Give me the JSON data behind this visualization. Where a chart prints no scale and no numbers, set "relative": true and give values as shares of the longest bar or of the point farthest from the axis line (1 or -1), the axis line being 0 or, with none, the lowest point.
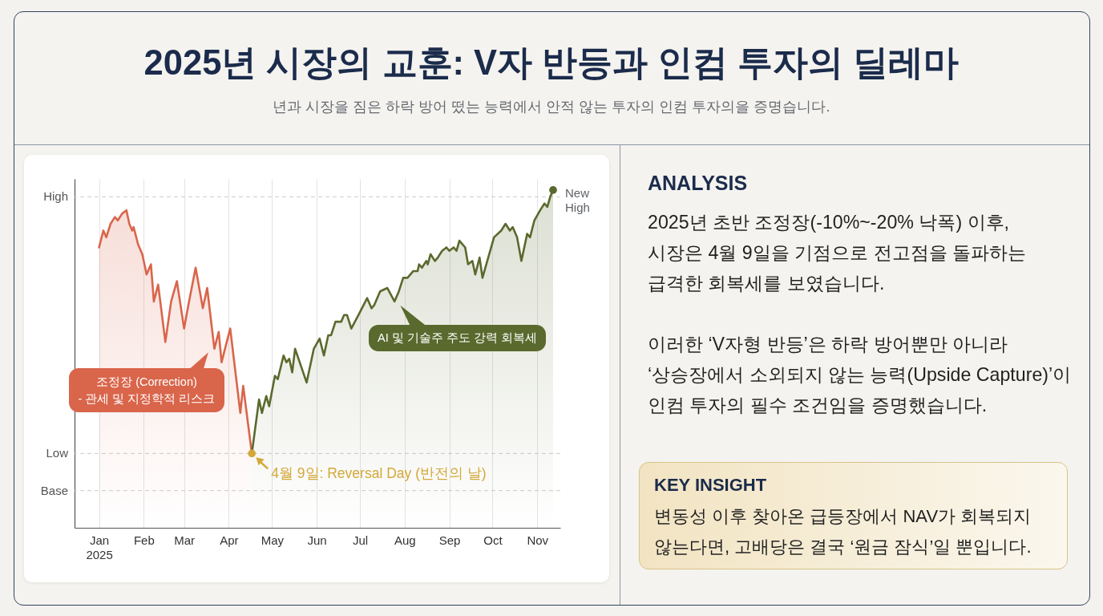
{
  "chart_data": [
    {
      "type": "area",
      "title": "2025년 시장의 교훈: V자 반등과 인컴 투자의 딜레마",
      "subtitle": "년과 시장을 짐은 하락 방어 떴는 능력에서 안적 않는 투자의 인컴 투자의을 증명습니다.",
      "relative": true,
      "grid": "x",
      "xlim": [
        "2024-12-15",
        "2025-11-17"
      ],
      "xticks": [
        {
          "value": "2025-01",
          "label": "Jan\n2025"
        },
        {
          "value": "2025-02",
          "label": "Feb"
        },
        {
          "value": "2025-03",
          "label": "Mar"
        },
        {
          "value": "2025-04",
          "label": "Apr"
        },
        {
          "value": "2025-05",
          "label": "May"
        },
        {
          "value": "2025-06",
          "label": "Jun"
        },
        {
          "value": "2025-07",
          "label": "Jul"
        },
        {
          "value": "2025-08",
          "label": "Aug"
        },
        {
          "value": "2025-09",
          "label": "Sep"
        },
        {
          "value": "2025-10",
          "label": "Oct"
        },
        {
          "value": "2025-11",
          "label": "Nov"
        }
      ],
      "series": [
        {
          "type": "area",
          "color": "#d9654b",
          "x": [
            "2025-01-01",
            "2025-01-04",
            "2025-01-06",
            "2025-01-09",
            "2025-01-12",
            "2025-01-14",
            "2025-01-17",
            "2025-01-20",
            "2025-01-22",
            "2025-01-24",
            "2025-01-25",
            "2025-01-28",
            "2025-01-31",
            "2025-02-03",
            "2025-02-06",
            "2025-02-08",
            "2025-02-11",
            "2025-02-16",
            "2025-02-20",
            "2025-02-24",
            "2025-03-01",
            "2025-03-04",
            "2025-03-09",
            "2025-03-14",
            "2025-03-17",
            "2025-03-22",
            "2025-03-25",
            "2025-03-27",
            "2025-04-02",
            "2025-04-09",
            "2025-04-11",
            "2025-04-17"
          ],
          "values": [
            0.83,
            0.88,
            0.86,
            0.9,
            0.92,
            0.91,
            0.93,
            0.94,
            0.9,
            0.88,
            0.89,
            0.84,
            0.81,
            0.75,
            0.78,
            0.67,
            0.72,
            0.55,
            0.67,
            0.73,
            0.59,
            0.66,
            0.77,
            0.65,
            0.71,
            0.53,
            0.58,
            0.49,
            0.59,
            0.34,
            0.42,
            0.22
          ]
        },
        {
          "type": "area",
          "color": "#5a692d",
          "x": [
            "2025-04-17",
            "2025-04-22",
            "2025-04-24",
            "2025-04-27",
            "2025-04-29",
            "2025-05-03",
            "2025-05-05",
            "2025-05-09",
            "2025-05-11",
            "2025-05-13",
            "2025-05-15",
            "2025-05-17",
            "2025-05-25",
            "2025-05-30",
            "2025-06-03",
            "2025-06-06",
            "2025-06-09",
            "2025-06-11",
            "2025-06-14",
            "2025-06-18",
            "2025-06-20",
            "2025-06-22",
            "2025-06-25",
            "2025-06-30",
            "2025-07-06",
            "2025-07-09",
            "2025-07-11",
            "2025-07-15",
            "2025-07-20",
            "2025-07-25",
            "2025-07-28",
            "2025-07-31",
            "2025-08-03",
            "2025-08-07",
            "2025-08-10",
            "2025-08-11",
            "2025-08-13",
            "2025-08-16",
            "2025-08-17",
            "2025-08-19",
            "2025-08-22",
            "2025-08-24",
            "2025-08-27",
            "2025-08-30",
            "2025-09-01",
            "2025-09-04",
            "2025-09-06",
            "2025-09-08",
            "2025-09-12",
            "2025-09-14",
            "2025-09-17",
            "2025-09-19",
            "2025-09-22",
            "2025-09-24",
            "2025-09-28",
            "2025-10-02",
            "2025-10-07",
            "2025-10-10",
            "2025-10-13",
            "2025-10-15",
            "2025-10-18",
            "2025-10-21",
            "2025-10-25",
            "2025-10-27",
            "2025-10-30",
            "2025-11-03",
            "2025-11-06",
            "2025-11-08",
            "2025-11-10",
            "2025-11-12"
          ],
          "values": [
            0.22,
            0.38,
            0.34,
            0.39,
            0.36,
            0.45,
            0.44,
            0.51,
            0.49,
            0.5,
            0.46,
            0.53,
            0.43,
            0.53,
            0.56,
            0.51,
            0.57,
            0.57,
            0.61,
            0.61,
            0.63,
            0.63,
            0.59,
            0.63,
            0.68,
            0.65,
            0.66,
            0.7,
            0.71,
            0.67,
            0.7,
            0.74,
            0.74,
            0.76,
            0.76,
            0.78,
            0.77,
            0.79,
            0.78,
            0.81,
            0.79,
            0.8,
            0.82,
            0.83,
            0.82,
            0.83,
            0.82,
            0.85,
            0.83,
            0.78,
            0.79,
            0.75,
            0.8,
            0.74,
            0.8,
            0.86,
            0.88,
            0.9,
            0.88,
            0.89,
            0.86,
            0.79,
            0.87,
            0.86,
            0.91,
            0.94,
            0.96,
            0.95,
            0.98,
            1.0
          ]
        },
        {
          "type": "scatter",
          "marker": "circle",
          "color": "#d4a83a",
          "x": [
            "2025-04-17"
          ],
          "values": [
            0.22
          ]
        },
        {
          "type": "scatter",
          "marker": "circle",
          "color": "#5a692d",
          "x": [
            "2025-11-12"
          ],
          "values": [
            1.0
          ]
        }
      ],
      "ref_lines": [
        {
          "axis": "y",
          "value": 0.98,
          "label": "High",
          "color": "#cccccc",
          "line_style": "dashed"
        },
        {
          "axis": "y",
          "value": 0.22,
          "label": "Low",
          "color": "#cccccc",
          "line_style": "dashed"
        },
        {
          "axis": "y",
          "value": 0.11,
          "label": "Base",
          "color": "#cccccc",
          "line_style": "dashed"
        }
      ],
      "annotations": [
        "조정장 (Correction)\n- 관세 및 지정학적 리스크",
        "AI 및 기술주 주도 강력 회복세",
        {
          "text": "4월 9일: Reversal Day (반전의 날)",
          "x": "2025-04-17",
          "y": 0.22
        },
        {
          "text": "New\nHigh",
          "x": "2025-11-12",
          "y": 1.0
        }
      ]
    },
    {
      "type": "other",
      "title": "ANALYSIS",
      "annotations": [
        "2025년 초반 조정장(-10%~-20% 낙폭) 이후,\n시장은 4월 9일을 기점으로 전고점을 돌파하는\n급격한 회복세를 보였습니다.",
        "이러한 ‘V자형 반등’은 하락 방어뿐만 아니라\n‘상승장에서 소외되지 않는 능력(Upside Capture)’이\n인컴 투자의 필수 조건임을 증명했습니다."
      ]
    },
    {
      "type": "other",
      "title": "KEY INSIGHT",
      "annotations": [
        "변동성 이후 찾아온 급등장에서 NAV가 회복되지\n않는다면, 고배당은 결국 ‘원금 잠식’일 뿐입니다."
      ]
    }
  ]
}
